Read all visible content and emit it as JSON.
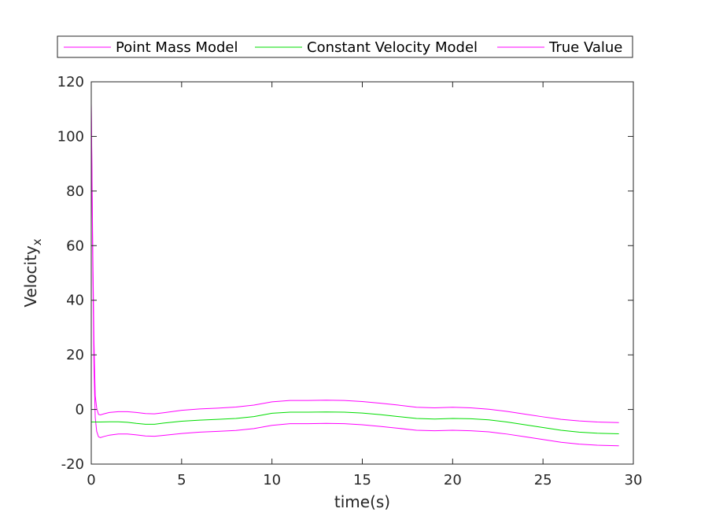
{
  "chart_data": {
    "type": "line",
    "title": "",
    "xlabel": "time(s)",
    "ylabel_main": "Velocity",
    "ylabel_subscript": "x",
    "xlim": [
      0,
      30
    ],
    "ylim": [
      -20,
      120
    ],
    "x_ticks": [
      0,
      5,
      10,
      15,
      20,
      25,
      30
    ],
    "y_ticks": [
      -20,
      0,
      20,
      40,
      60,
      80,
      100,
      120
    ],
    "grid": false,
    "legend_position": "top",
    "series": [
      {
        "name": "Point Mass Model",
        "color": "#ff00ff",
        "points": [
          [
            0,
            112
          ],
          [
            0.08,
            55
          ],
          [
            0.15,
            15
          ],
          [
            0.22,
            -3
          ],
          [
            0.3,
            -8
          ],
          [
            0.4,
            -10
          ],
          [
            0.5,
            -10.3
          ],
          [
            0.7,
            -9.9
          ],
          [
            1.0,
            -9.4
          ],
          [
            1.5,
            -9.0
          ],
          [
            2.0,
            -9.0
          ],
          [
            2.5,
            -9.3
          ],
          [
            3.0,
            -9.7
          ],
          [
            3.5,
            -9.8
          ],
          [
            4.0,
            -9.5
          ],
          [
            5.0,
            -8.8
          ],
          [
            6.0,
            -8.3
          ],
          [
            7.0,
            -8.0
          ],
          [
            8.0,
            -7.7
          ],
          [
            9.0,
            -7.0
          ],
          [
            10.0,
            -5.8
          ],
          [
            11.0,
            -5.2
          ],
          [
            12.0,
            -5.2
          ],
          [
            13.0,
            -5.1
          ],
          [
            14.0,
            -5.2
          ],
          [
            15.0,
            -5.6
          ],
          [
            16.0,
            -6.2
          ],
          [
            17.0,
            -6.9
          ],
          [
            18.0,
            -7.6
          ],
          [
            19.0,
            -7.8
          ],
          [
            20.0,
            -7.6
          ],
          [
            21.0,
            -7.8
          ],
          [
            22.0,
            -8.2
          ],
          [
            23.0,
            -9.0
          ],
          [
            24.0,
            -10.0
          ],
          [
            25.0,
            -11.0
          ],
          [
            26.0,
            -12.0
          ],
          [
            27.0,
            -12.7
          ],
          [
            28.0,
            -13.1
          ],
          [
            29.2,
            -13.3
          ]
        ]
      },
      {
        "name": "Constant Velocity Model",
        "color": "#00dd00",
        "points": [
          [
            0,
            -4.6
          ],
          [
            0.5,
            -4.6
          ],
          [
            1.0,
            -4.5
          ],
          [
            1.5,
            -4.5
          ],
          [
            2.0,
            -4.7
          ],
          [
            2.5,
            -5.1
          ],
          [
            3.0,
            -5.4
          ],
          [
            3.5,
            -5.4
          ],
          [
            4.0,
            -5.0
          ],
          [
            5.0,
            -4.3
          ],
          [
            6.0,
            -3.9
          ],
          [
            7.0,
            -3.6
          ],
          [
            8.0,
            -3.3
          ],
          [
            9.0,
            -2.6
          ],
          [
            10.0,
            -1.4
          ],
          [
            11.0,
            -1.0
          ],
          [
            12.0,
            -1.0
          ],
          [
            13.0,
            -0.9
          ],
          [
            14.0,
            -1.0
          ],
          [
            15.0,
            -1.3
          ],
          [
            16.0,
            -1.9
          ],
          [
            17.0,
            -2.6
          ],
          [
            18.0,
            -3.3
          ],
          [
            19.0,
            -3.5
          ],
          [
            20.0,
            -3.3
          ],
          [
            21.0,
            -3.4
          ],
          [
            22.0,
            -3.8
          ],
          [
            23.0,
            -4.6
          ],
          [
            24.0,
            -5.6
          ],
          [
            25.0,
            -6.6
          ],
          [
            26.0,
            -7.6
          ],
          [
            27.0,
            -8.3
          ],
          [
            28.0,
            -8.7
          ],
          [
            29.2,
            -8.9
          ]
        ]
      },
      {
        "name": "True Value",
        "color": "#ff00ff",
        "points": [
          [
            0,
            112
          ],
          [
            0.08,
            60
          ],
          [
            0.15,
            25
          ],
          [
            0.22,
            5
          ],
          [
            0.3,
            0.5
          ],
          [
            0.4,
            -1.8
          ],
          [
            0.5,
            -2.0
          ],
          [
            0.7,
            -1.6
          ],
          [
            1.0,
            -1.1
          ],
          [
            1.5,
            -0.8
          ],
          [
            2.0,
            -0.8
          ],
          [
            2.5,
            -1.1
          ],
          [
            3.0,
            -1.5
          ],
          [
            3.5,
            -1.6
          ],
          [
            4.0,
            -1.2
          ],
          [
            5.0,
            -0.3
          ],
          [
            6.0,
            0.2
          ],
          [
            7.0,
            0.5
          ],
          [
            8.0,
            0.9
          ],
          [
            9.0,
            1.6
          ],
          [
            10.0,
            2.8
          ],
          [
            11.0,
            3.3
          ],
          [
            12.0,
            3.3
          ],
          [
            13.0,
            3.4
          ],
          [
            14.0,
            3.3
          ],
          [
            15.0,
            2.9
          ],
          [
            16.0,
            2.3
          ],
          [
            17.0,
            1.6
          ],
          [
            18.0,
            0.8
          ],
          [
            19.0,
            0.6
          ],
          [
            20.0,
            0.8
          ],
          [
            21.0,
            0.6
          ],
          [
            22.0,
            0.1
          ],
          [
            23.0,
            -0.7
          ],
          [
            24.0,
            -1.7
          ],
          [
            25.0,
            -2.7
          ],
          [
            26.0,
            -3.6
          ],
          [
            27.0,
            -4.2
          ],
          [
            28.0,
            -4.6
          ],
          [
            29.2,
            -4.8
          ]
        ]
      }
    ]
  }
}
